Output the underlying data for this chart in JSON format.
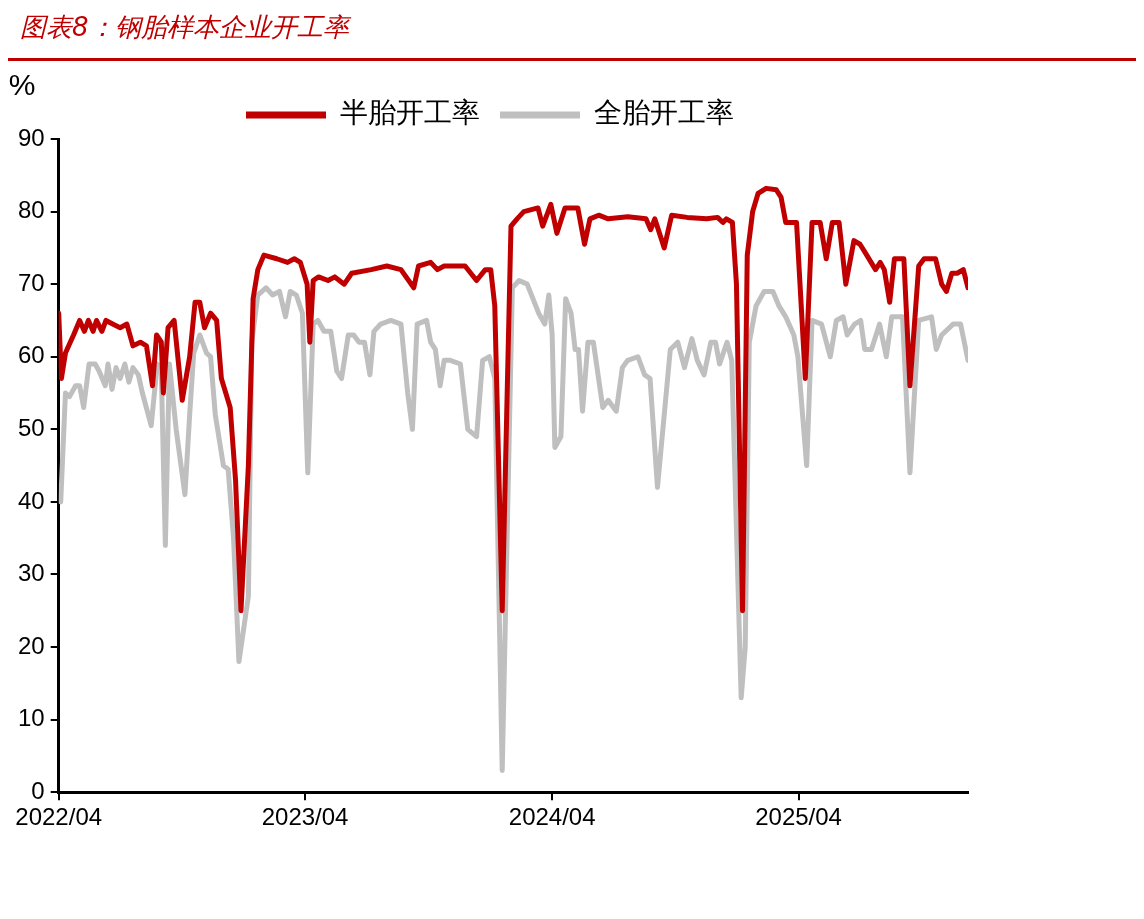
{
  "chart_data": {
    "type": "line",
    "title": "图表8：钢胎样本企业开工率",
    "ylabel": "%",
    "xlim": [
      "2022-04-01",
      "2025-12-08"
    ],
    "xticks": [
      {
        "value": "2022-04-01",
        "label": "2022/04"
      },
      {
        "value": "2023-04-01",
        "label": "2023/04"
      },
      {
        "value": "2024-04-01",
        "label": "2024/04"
      },
      {
        "value": "2025-04-01",
        "label": "2025/04"
      }
    ],
    "ylim": [
      0,
      90
    ],
    "yticks": [
      0,
      10,
      20,
      30,
      40,
      50,
      60,
      70,
      80,
      90
    ],
    "grid": false,
    "legend": "top",
    "marker": "none",
    "line_style": "solid",
    "series": [
      {
        "name": "半胎开工率",
        "color": "#c00000",
        "x": [
          "2022-04-01",
          "2022-04-05",
          "2022-04-11",
          "2022-04-23",
          "2022-05-02",
          "2022-05-09",
          "2022-05-15",
          "2022-05-22",
          "2022-05-27",
          "2022-06-04",
          "2022-06-10",
          "2022-06-20",
          "2022-07-01",
          "2022-07-11",
          "2022-07-20",
          "2022-07-31",
          "2022-08-09",
          "2022-08-18",
          "2022-08-24",
          "2022-08-31",
          "2022-09-03",
          "2022-09-10",
          "2022-09-19",
          "2022-10-01",
          "2022-10-12",
          "2022-10-20",
          "2022-10-27",
          "2022-11-03",
          "2022-11-12",
          "2022-11-21",
          "2022-11-28",
          "2022-12-11",
          "2022-12-19",
          "2022-12-27",
          "2023-01-07",
          "2023-01-14",
          "2023-01-21",
          "2023-01-30",
          "2023-02-18",
          "2023-03-06",
          "2023-03-16",
          "2023-03-25",
          "2023-04-04",
          "2023-04-08",
          "2023-04-13",
          "2023-04-21",
          "2023-05-05",
          "2023-05-15",
          "2023-05-29",
          "2023-06-09",
          "2023-07-08",
          "2023-07-31",
          "2023-08-21",
          "2023-09-09",
          "2023-09-16",
          "2023-10-04",
          "2023-10-14",
          "2023-10-24",
          "2023-11-24",
          "2023-12-11",
          "2023-12-24",
          "2024-01-01",
          "2024-01-07",
          "2024-01-18",
          "2024-01-31",
          "2024-02-09",
          "2024-02-19",
          "2024-03-11",
          "2024-03-18",
          "2024-03-30",
          "2024-04-08",
          "2024-04-20",
          "2024-05-09",
          "2024-05-19",
          "2024-05-27",
          "2024-06-09",
          "2024-06-23",
          "2024-07-22",
          "2024-08-18",
          "2024-08-25",
          "2024-08-31",
          "2024-09-14",
          "2024-09-25",
          "2024-10-18",
          "2024-11-16",
          "2024-12-02",
          "2024-12-10",
          "2024-12-15",
          "2024-12-24",
          "2024-12-30",
          "2025-01-08",
          "2025-01-15",
          "2025-01-23",
          "2025-01-31",
          "2025-02-12",
          "2025-02-27",
          "2025-03-06",
          "2025-03-13",
          "2025-03-29",
          "2025-04-11",
          "2025-04-21",
          "2025-05-03",
          "2025-05-12",
          "2025-05-21",
          "2025-05-31",
          "2025-06-10",
          "2025-06-22",
          "2025-07-01",
          "2025-07-11",
          "2025-07-24",
          "2025-07-31",
          "2025-08-06",
          "2025-08-14",
          "2025-08-21",
          "2025-09-04",
          "2025-09-13",
          "2025-09-26",
          "2025-10-04",
          "2025-10-21",
          "2025-10-30",
          "2025-11-06",
          "2025-11-14",
          "2025-11-22",
          "2025-12-01",
          "2025-12-08"
        ],
        "values": [
          66,
          57,
          60.5,
          63,
          65,
          63.5,
          65,
          63.5,
          65,
          63.5,
          65,
          64.5,
          64,
          64.5,
          61.5,
          62,
          61.5,
          56,
          63,
          62,
          55,
          64,
          65,
          54,
          60,
          67.5,
          67.5,
          64,
          66,
          65,
          57,
          53,
          43,
          25,
          45,
          68,
          72,
          74,
          73.5,
          73,
          73.5,
          73,
          70,
          62,
          70.5,
          71,
          70.5,
          71,
          70,
          71.5,
          72,
          72.5,
          72,
          69.5,
          72.5,
          73,
          72,
          72.5,
          72.5,
          70.5,
          72,
          72,
          67,
          25,
          78,
          79,
          80,
          80.5,
          78,
          81,
          77,
          80.5,
          80.5,
          75.5,
          79,
          79.5,
          79,
          79.3,
          79,
          77.5,
          79,
          75,
          79.5,
          79.2,
          79,
          79.2,
          78.5,
          79,
          78.5,
          70,
          25,
          74,
          80,
          82.5,
          83.2,
          83,
          82,
          78.5,
          78.5,
          57,
          78.5,
          78.5,
          73.5,
          78.5,
          78.5,
          70,
          76,
          75.5,
          74,
          72,
          73,
          72,
          67.5,
          73.5,
          73.5,
          56,
          72.5,
          73.5,
          73.5,
          70,
          69,
          71.5,
          71.5,
          72,
          69.5
        ]
      },
      {
        "name": "全胎开工率",
        "color": "#bfbfbf",
        "x": [
          "2022-04-04",
          "2022-04-11",
          "2022-04-17",
          "2022-04-26",
          "2022-05-02",
          "2022-05-08",
          "2022-05-16",
          "2022-05-25",
          "2022-05-31",
          "2022-06-09",
          "2022-06-13",
          "2022-06-19",
          "2022-06-25",
          "2022-07-01",
          "2022-07-08",
          "2022-07-14",
          "2022-07-20",
          "2022-07-28",
          "2022-08-03",
          "2022-08-16",
          "2022-08-25",
          "2022-08-31",
          "2022-09-06",
          "2022-09-12",
          "2022-09-22",
          "2022-10-05",
          "2022-10-12",
          "2022-10-18",
          "2022-10-27",
          "2022-11-06",
          "2022-11-12",
          "2022-11-19",
          "2022-12-01",
          "2022-12-08",
          "2022-12-16",
          "2022-12-24",
          "2023-01-07",
          "2023-01-12",
          "2023-01-21",
          "2023-02-02",
          "2023-02-12",
          "2023-02-22",
          "2023-03-03",
          "2023-03-10",
          "2023-03-19",
          "2023-03-28",
          "2023-04-05",
          "2023-04-13",
          "2023-04-20",
          "2023-04-29",
          "2023-05-09",
          "2023-05-18",
          "2023-05-25",
          "2023-06-04",
          "2023-06-12",
          "2023-06-20",
          "2023-06-28",
          "2023-07-06",
          "2023-07-12",
          "2023-07-22",
          "2023-08-06",
          "2023-08-21",
          "2023-08-31",
          "2023-09-07",
          "2023-09-14",
          "2023-09-28",
          "2023-10-04",
          "2023-10-11",
          "2023-10-18",
          "2023-10-24",
          "2023-11-02",
          "2023-11-17",
          "2023-11-28",
          "2023-12-11",
          "2023-12-20",
          "2023-12-30",
          "2024-01-07",
          "2024-01-18",
          "2024-02-02",
          "2024-02-12",
          "2024-02-24",
          "2024-03-12",
          "2024-03-21",
          "2024-03-27",
          "2024-04-01",
          "2024-04-05",
          "2024-04-14",
          "2024-04-21",
          "2024-04-29",
          "2024-05-05",
          "2024-05-10",
          "2024-05-16",
          "2024-05-24",
          "2024-06-01",
          "2024-06-15",
          "2024-06-23",
          "2024-07-05",
          "2024-07-14",
          "2024-07-22",
          "2024-08-06",
          "2024-08-16",
          "2024-08-24",
          "2024-09-04",
          "2024-09-23",
          "2024-10-04",
          "2024-10-14",
          "2024-10-25",
          "2024-11-02",
          "2024-11-12",
          "2024-11-22",
          "2024-11-29",
          "2024-12-05",
          "2024-12-16",
          "2024-12-23",
          "2025-01-06",
          "2025-01-12",
          "2025-01-18",
          "2025-01-28",
          "2025-02-09",
          "2025-02-22",
          "2025-03-03",
          "2025-03-13",
          "2025-03-25",
          "2025-03-31",
          "2025-04-13",
          "2025-04-21",
          "2025-05-05",
          "2025-05-18",
          "2025-05-27",
          "2025-06-06",
          "2025-06-12",
          "2025-06-23",
          "2025-07-02",
          "2025-07-08",
          "2025-07-18",
          "2025-07-30",
          "2025-08-09",
          "2025-08-17",
          "2025-09-02",
          "2025-09-13",
          "2025-09-26",
          "2025-10-15",
          "2025-10-22",
          "2025-10-30",
          "2025-11-16",
          "2025-11-27",
          "2025-12-08"
        ],
        "values": [
          40,
          55,
          54.5,
          56,
          56,
          53,
          59,
          59,
          58,
          56,
          59,
          55.5,
          58.5,
          57,
          59,
          56.5,
          58.5,
          57.5,
          55,
          50.5,
          59,
          58,
          34,
          59,
          50,
          41,
          52,
          60.5,
          63,
          60.5,
          60,
          52,
          45,
          44.5,
          35,
          18,
          27,
          62,
          68.5,
          69.5,
          68.5,
          69,
          65.5,
          69,
          68.5,
          66,
          44,
          64.5,
          65,
          63.5,
          63.5,
          58,
          57,
          63,
          63,
          62,
          62,
          57.5,
          63.5,
          64.5,
          65,
          64.5,
          55,
          50,
          64.5,
          65,
          62,
          61,
          56,
          59.5,
          59.5,
          59,
          50,
          49,
          59.5,
          60,
          57,
          3,
          69.5,
          70.5,
          70,
          66,
          64.5,
          68.5,
          63,
          47.5,
          49,
          68,
          66,
          61,
          61,
          52.5,
          62,
          62,
          53,
          54,
          52.5,
          58.5,
          59.5,
          60,
          57.5,
          57,
          42,
          61,
          62,
          58.5,
          62.5,
          59.5,
          57.5,
          62,
          62,
          59,
          62,
          59.5,
          13,
          20,
          62,
          67,
          69,
          69,
          67,
          65.5,
          63,
          60,
          45,
          65,
          64.5,
          60,
          65,
          65.5,
          63,
          64.5,
          65,
          61,
          61,
          64.5,
          60,
          65.5,
          65.5,
          44,
          65,
          65.5,
          61,
          63,
          64.5,
          64.5,
          59.5
        ]
      }
    ]
  }
}
